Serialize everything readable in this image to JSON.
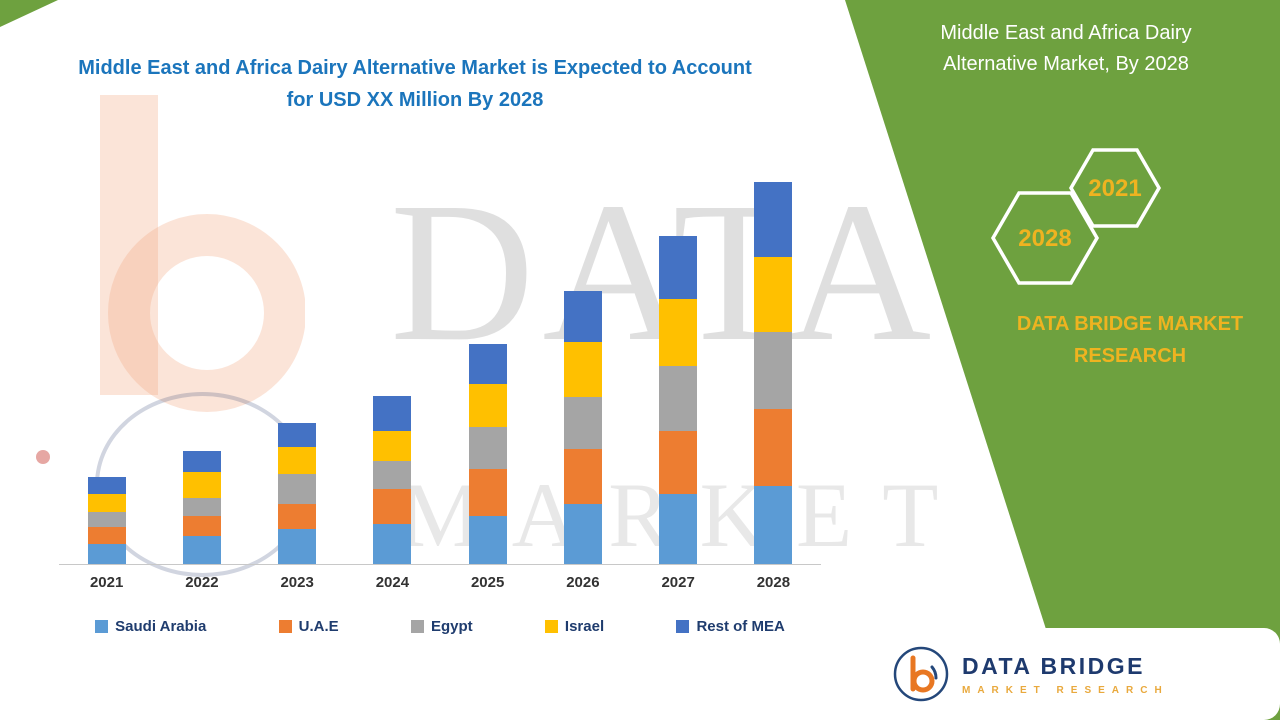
{
  "side_panel": {
    "title": "Middle East and Africa Dairy Alternative Market, By 2028",
    "hexagons": [
      {
        "label": "2028"
      },
      {
        "label": "2021"
      }
    ],
    "brand_text": "DATA BRIDGE MARKET RESEARCH"
  },
  "watermark": {
    "line1": "DATA BRIDGE",
    "line2": "MARKET RESEARCH"
  },
  "footer_logo": {
    "brand": "DATA BRIDGE",
    "tagline": "MARKET RESEARCH"
  },
  "colors": {
    "panel_green": "#6EA13F",
    "title_blue": "#1B75BC",
    "accent_yellow": "#EFB320",
    "brand_navy": "#1E3A6E",
    "logo_orange": "#E87722"
  },
  "chart_data": {
    "type": "bar",
    "stacked": true,
    "title": "Middle East and Africa Dairy Alternative Market is Expected to Account for USD XX Million By 2028",
    "xlabel": "",
    "ylabel": "",
    "units": "relative height (no y-axis values shown in figure)",
    "ylim": [
      0,
      400
    ],
    "grid": false,
    "legend_position": "bottom",
    "categories": [
      "2021",
      "2022",
      "2023",
      "2024",
      "2025",
      "2026",
      "2027",
      "2028"
    ],
    "series": [
      {
        "name": "Saudi Arabia",
        "color": "#5B9BD5",
        "values": [
          20,
          28,
          35,
          40,
          48,
          60,
          70,
          78
        ]
      },
      {
        "name": "U.A.E",
        "color": "#ED7D31",
        "values": [
          17,
          20,
          25,
          35,
          47,
          55,
          63,
          77
        ]
      },
      {
        "name": "Egypt",
        "color": "#A5A5A5",
        "values": [
          15,
          18,
          30,
          28,
          42,
          52,
          65,
          77
        ]
      },
      {
        "name": "Israel",
        "color": "#FFC000",
        "values": [
          18,
          26,
          27,
          30,
          43,
          55,
          67,
          75
        ]
      },
      {
        "name": "Rest of MEA",
        "color": "#4472C4",
        "values": [
          17,
          21,
          24,
          35,
          40,
          51,
          63,
          75
        ]
      }
    ],
    "totals": [
      87,
      113,
      141,
      168,
      220,
      273,
      328,
      382
    ]
  }
}
